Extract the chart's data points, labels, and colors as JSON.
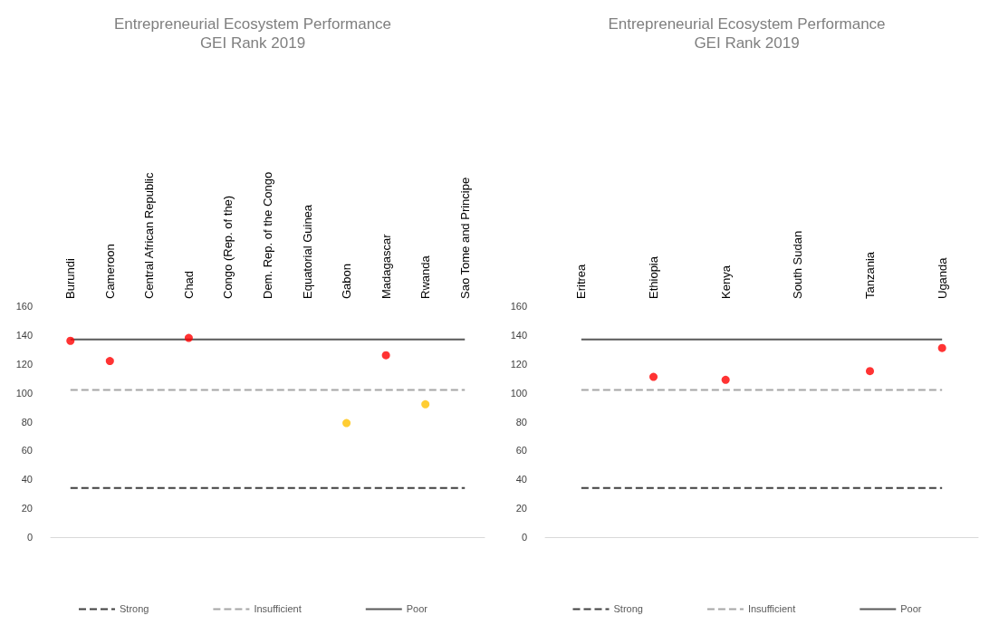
{
  "chart_data": [
    {
      "type": "scatter",
      "title": "Entrepreneurial Ecosystem Performance",
      "subtitle": "GEI Rank 2019",
      "categories": [
        "Burundi",
        "Cameroon",
        "Central African Republic",
        "Chad",
        "Congo (Rep. of the)",
        "Dem. Rep. of the Congo",
        "Equatorial Guinea",
        "Gabon",
        "Madagascar",
        "Rwanda",
        "Sao Tome and Principe"
      ],
      "series": [
        {
          "type": "line",
          "name": "Strong",
          "color": "#404040",
          "line_style": "dashed",
          "marker": "none",
          "values": [
            34,
            34,
            34,
            34,
            34,
            34,
            34,
            34,
            34,
            34,
            34
          ]
        },
        {
          "type": "line",
          "name": "Insufficient",
          "color": "#a6a6a6",
          "line_style": "dashed",
          "marker": "none",
          "values": [
            102,
            102,
            102,
            102,
            102,
            102,
            102,
            102,
            102,
            102,
            102
          ]
        },
        {
          "type": "line",
          "name": "Poor",
          "color": "#595959",
          "line_style": "solid",
          "marker": "none",
          "values": [
            137,
            137,
            137,
            137,
            137,
            137,
            137,
            137,
            137,
            137,
            137
          ]
        },
        {
          "marker": "circle",
          "colors": [
            "#ff0000",
            "#ff0000",
            null,
            "#ff0000",
            null,
            null,
            null,
            "#ffc000",
            "#ff0000",
            "#ffc000",
            null
          ],
          "values": [
            136,
            122,
            null,
            138,
            null,
            null,
            null,
            79,
            126,
            92,
            null
          ]
        }
      ],
      "ylim": [
        0,
        160
      ],
      "yticks": [
        0,
        20,
        40,
        60,
        80,
        100,
        120,
        140,
        160
      ],
      "grid": false,
      "legend": "bottom"
    },
    {
      "type": "scatter",
      "title": "Entrepreneurial Ecosystem Performance",
      "subtitle": "GEI Rank 2019",
      "categories": [
        "Eritrea",
        "Ethiopia",
        "Kenya",
        "South Sudan",
        "Tanzania",
        "Uganda"
      ],
      "series": [
        {
          "type": "line",
          "name": "Strong",
          "color": "#404040",
          "line_style": "dashed",
          "marker": "none",
          "values": [
            34,
            34,
            34,
            34,
            34,
            34
          ]
        },
        {
          "type": "line",
          "name": "Insufficient",
          "color": "#a6a6a6",
          "line_style": "dashed",
          "marker": "none",
          "values": [
            102,
            102,
            102,
            102,
            102,
            102
          ]
        },
        {
          "type": "line",
          "name": "Poor",
          "color": "#595959",
          "line_style": "solid",
          "marker": "none",
          "values": [
            137,
            137,
            137,
            137,
            137,
            137
          ]
        },
        {
          "marker": "circle",
          "colors": [
            null,
            "#ff0000",
            "#ff0000",
            null,
            "#ff0000",
            "#ff0000"
          ],
          "values": [
            null,
            111,
            109,
            null,
            115,
            131
          ]
        }
      ],
      "ylim": [
        0,
        160
      ],
      "yticks": [
        0,
        20,
        40,
        60,
        80,
        100,
        120,
        140,
        160
      ],
      "grid": false,
      "legend": "bottom"
    }
  ]
}
